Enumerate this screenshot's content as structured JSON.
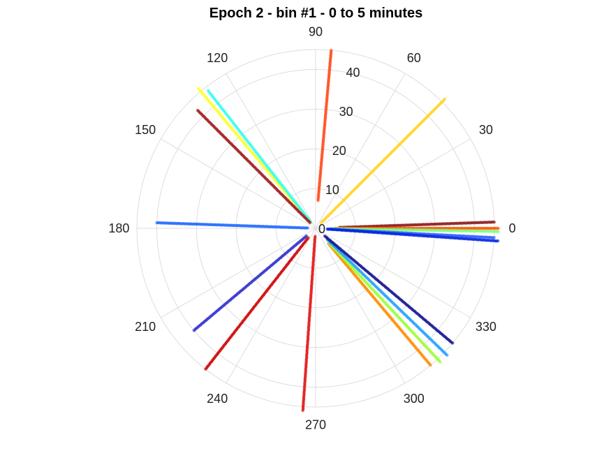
{
  "chart_data": {
    "type": "scatter",
    "subtype": "polar",
    "title": "Epoch 2 - bin #1 - 0 to 5 minutes",
    "theta_unit": "degrees",
    "theta_ticks": [
      0,
      30,
      60,
      90,
      120,
      150,
      180,
      210,
      240,
      270,
      300,
      330
    ],
    "r_ticks": [
      0,
      10,
      20,
      30,
      40
    ],
    "rlim": [
      0,
      45
    ],
    "grid": true,
    "legend": "none",
    "series": [
      {
        "theta": 2,
        "r_range": [
          6,
          45
        ],
        "color": "#8b1a1a"
      },
      {
        "theta": 0,
        "r_range": [
          5,
          46
        ],
        "color": "#ff5500"
      },
      {
        "theta": -1,
        "r_range": [
          4,
          46
        ],
        "color": "#7dff7a"
      },
      {
        "theta": -3,
        "r_range": [
          3,
          45
        ],
        "color": "#2a5cff"
      },
      {
        "theta": -4,
        "r_range": [
          3,
          46
        ],
        "color": "#0022dd"
      },
      {
        "theta": 45,
        "r_range": [
          2,
          46
        ],
        "color": "#ffd21f"
      },
      {
        "theta": 85,
        "r_range": [
          7,
          45
        ],
        "color": "#ff4d1a"
      },
      {
        "theta": 130,
        "r_range": [
          2,
          46
        ],
        "color": "#ffff22"
      },
      {
        "theta": 128,
        "r_range": [
          2,
          44
        ],
        "color": "#33ffee"
      },
      {
        "theta": 135,
        "r_range": [
          2,
          42
        ],
        "color": "#a01818"
      },
      {
        "theta": 178,
        "r_range": [
          2,
          40
        ],
        "color": "#1e6aff"
      },
      {
        "theta": 220,
        "r_range": [
          3,
          40
        ],
        "color": "#3333cc"
      },
      {
        "theta": 232,
        "r_range": [
          3,
          45
        ],
        "color": "#cc0000"
      },
      {
        "theta": 266,
        "r_range": [
          2,
          46
        ],
        "color": "#e01010"
      },
      {
        "theta": 310,
        "r_range": [
          5,
          45
        ],
        "color": "#ff8c00"
      },
      {
        "theta": 313,
        "r_range": [
          5,
          46
        ],
        "color": "#99ff33"
      },
      {
        "theta": 316,
        "r_range": [
          4,
          46
        ],
        "color": "#1ea0ff"
      },
      {
        "theta": 320,
        "r_range": [
          3,
          45
        ],
        "color": "#101090"
      }
    ]
  }
}
